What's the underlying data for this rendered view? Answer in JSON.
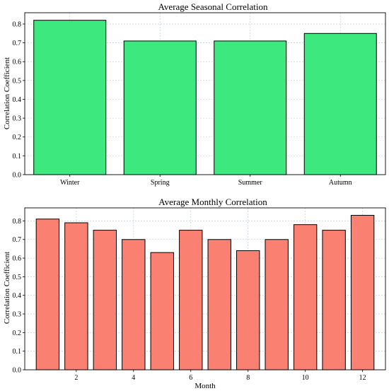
{
  "chart_data": [
    {
      "type": "bar",
      "title": "Average Seasonal Correlation",
      "xlabel": "",
      "ylabel": "Correlation Coefficient",
      "categories": [
        "Winter",
        "Spring",
        "Summer",
        "Autumn"
      ],
      "values": [
        0.82,
        0.71,
        0.71,
        0.75
      ],
      "ylim": [
        0,
        0.86
      ],
      "yticks": [
        0.0,
        0.1,
        0.2,
        0.3,
        0.4,
        0.5,
        0.6,
        0.7,
        0.8
      ],
      "grid": true,
      "color": "#3de87f"
    },
    {
      "type": "bar",
      "title": "Average Monthly Correlation",
      "xlabel": "Month",
      "ylabel": "Correlation Coefficient",
      "x": [
        1,
        2,
        3,
        4,
        5,
        6,
        7,
        8,
        9,
        10,
        11,
        12
      ],
      "values": [
        0.81,
        0.79,
        0.75,
        0.7,
        0.63,
        0.75,
        0.7,
        0.64,
        0.7,
        0.78,
        0.75,
        0.83
      ],
      "xticks": [
        2,
        4,
        6,
        8,
        10,
        12
      ],
      "xlim": [
        0.2,
        12.8
      ],
      "ylim": [
        0,
        0.87
      ],
      "yticks": [
        0.0,
        0.1,
        0.2,
        0.3,
        0.4,
        0.5,
        0.6,
        0.7,
        0.8
      ],
      "grid": true,
      "color": "#fa8072"
    }
  ]
}
